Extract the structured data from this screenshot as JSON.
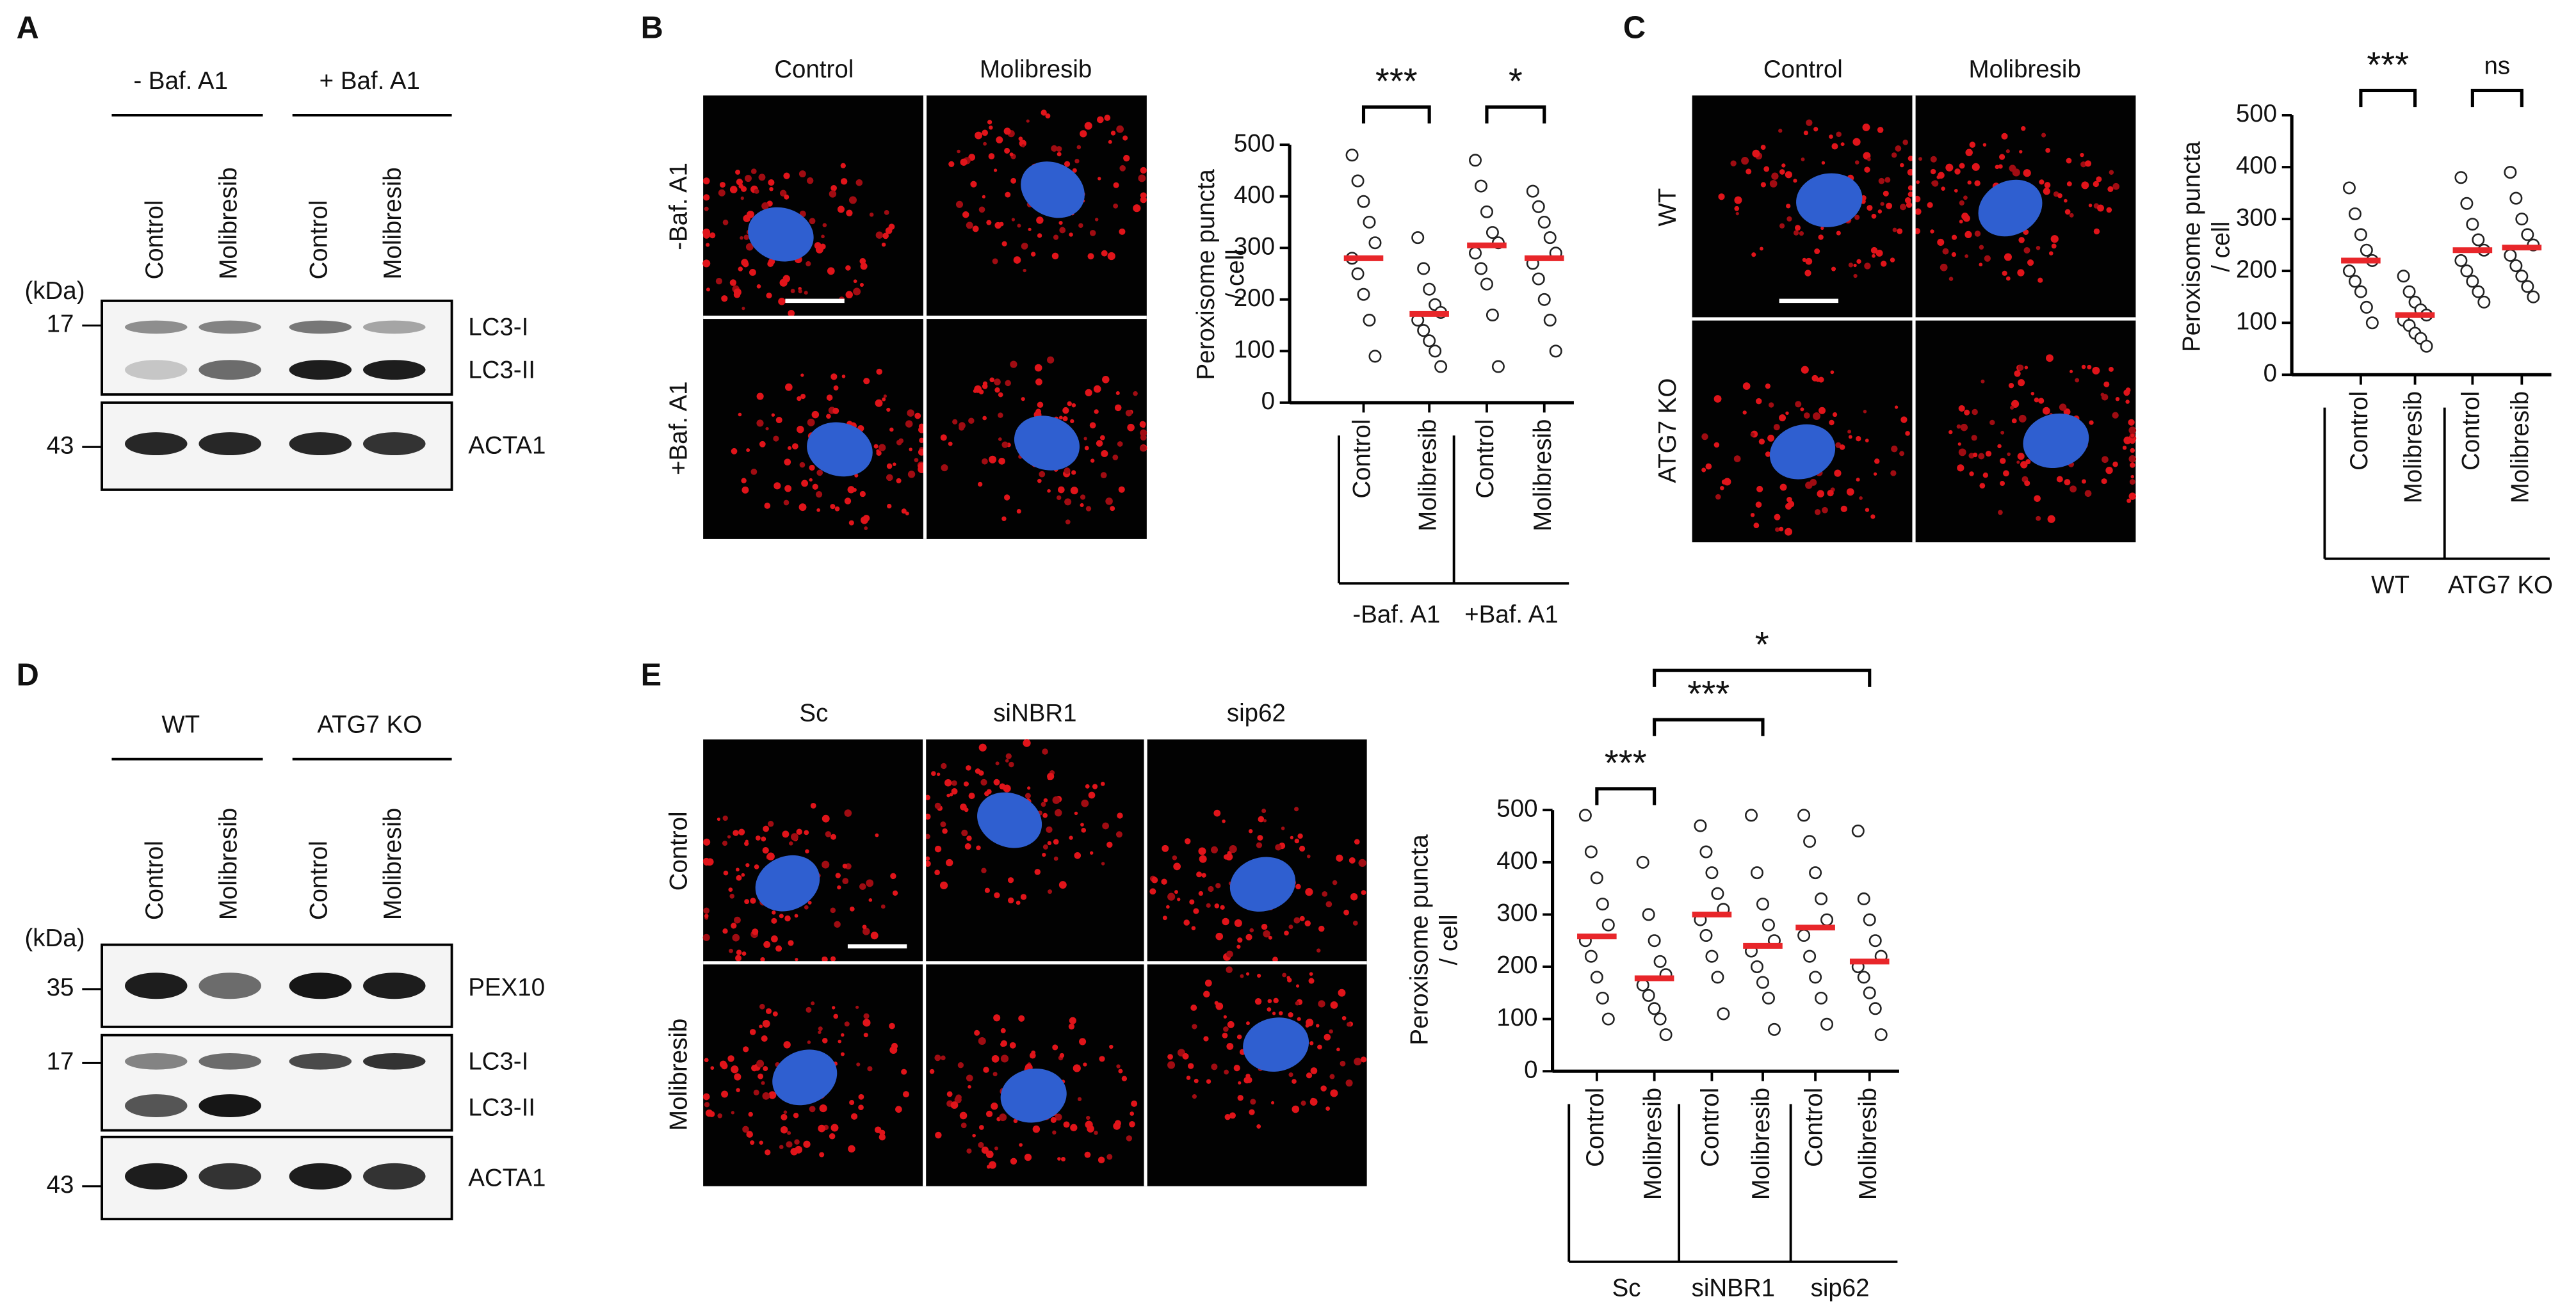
{
  "figure": {
    "A": {
      "label": "A",
      "conditions": [
        "- Baf. A1",
        "+ Baf. A1"
      ],
      "lanes": [
        "Control",
        "Molibresib",
        "Control",
        "Molibresib"
      ],
      "unit": "(kDa)",
      "blots": [
        {
          "markers": [
            17
          ],
          "bands": [
            "LC3-I",
            "LC3-II"
          ]
        },
        {
          "markers": [
            43
          ],
          "bands": [
            "ACTA1"
          ]
        }
      ]
    },
    "B": {
      "label": "B",
      "columns": [
        "Control",
        "Molibresib"
      ],
      "rows": [
        "-Baf. A1",
        "+Baf. A1"
      ]
    },
    "C": {
      "label": "C",
      "columns": [
        "Control",
        "Molibresib"
      ],
      "rows": [
        "WT",
        "ATG7 KO"
      ]
    },
    "D": {
      "label": "D",
      "conditions": [
        "WT",
        "ATG7 KO"
      ],
      "lanes": [
        "Control",
        "Molibresib",
        "Control",
        "Molibresib"
      ],
      "unit": "(kDa)",
      "blots": [
        {
          "markers": [
            35
          ],
          "bands": [
            "PEX10"
          ]
        },
        {
          "markers": [
            17
          ],
          "bands": [
            "LC3-I",
            "LC3-II"
          ]
        },
        {
          "markers": [
            43
          ],
          "bands": [
            "ACTA1"
          ]
        }
      ]
    },
    "E": {
      "label": "E",
      "columns": [
        "Sc",
        "siNBR1",
        "sip62"
      ],
      "rows": [
        "Control",
        "Molibresib"
      ]
    }
  },
  "chart_data": [
    {
      "type": "dot",
      "ylabel": [
        "Peroxisome puncta",
        "/ cell"
      ],
      "ylim": [
        0,
        500
      ],
      "yticks": [
        0,
        100,
        200,
        300,
        400,
        500
      ],
      "point_color": "#ffffff",
      "mean_color": "#e8262a",
      "significance": [
        "***",
        "*"
      ],
      "groups": [
        {
          "label": "-Baf. A1",
          "categories": [
            "Control",
            "Molibresib"
          ],
          "means": [
            280,
            172
          ],
          "points": [
            [
              480,
              430,
              390,
              350,
              310,
              280,
              250,
              210,
              160,
              90
            ],
            [
              320,
              260,
              220,
              190,
              175,
              160,
              140,
              120,
              100,
              70
            ]
          ]
        },
        {
          "label": "+Baf. A1",
          "categories": [
            "Control",
            "Molibresib"
          ],
          "means": [
            305,
            280
          ],
          "points": [
            [
              470,
              420,
              370,
              330,
              310,
              290,
              260,
              230,
              170,
              70
            ],
            [
              410,
              380,
              350,
              320,
              290,
              270,
              240,
              200,
              160,
              100
            ]
          ]
        }
      ]
    },
    {
      "type": "dot",
      "ylabel": [
        "Peroxisome puncta",
        "/ cell"
      ],
      "ylim": [
        0,
        500
      ],
      "yticks": [
        0,
        100,
        200,
        300,
        400,
        500
      ],
      "point_color": "#ffffff",
      "mean_color": "#e8262a",
      "significance": [
        "***",
        "ns"
      ],
      "groups": [
        {
          "label": "WT",
          "categories": [
            "Control",
            "Molibresib"
          ],
          "means": [
            220,
            115
          ],
          "points": [
            [
              360,
              310,
              270,
              240,
              220,
              200,
              180,
              160,
              130,
              100
            ],
            [
              190,
              160,
              140,
              125,
              115,
              105,
              95,
              80,
              70,
              55
            ]
          ]
        },
        {
          "label": "ATG7 KO",
          "categories": [
            "Control",
            "Molibresib"
          ],
          "means": [
            240,
            245
          ],
          "points": [
            [
              380,
              330,
              290,
              260,
              240,
              220,
              200,
              180,
              160,
              140
            ],
            [
              390,
              340,
              300,
              270,
              250,
              230,
              210,
              190,
              170,
              150
            ]
          ]
        }
      ]
    },
    {
      "type": "dot",
      "ylabel": [
        "Peroxisome puncta",
        "/ cell"
      ],
      "ylim": [
        0,
        500
      ],
      "yticks": [
        0,
        100,
        200,
        300,
        400,
        500
      ],
      "point_color": "#ffffff",
      "mean_color": "#e8262a",
      "significance": [
        "***",
        "***",
        "*"
      ],
      "groups": [
        {
          "label": "Sc",
          "categories": [
            "Control",
            "Molibresib"
          ],
          "means": [
            258,
            178
          ],
          "points": [
            [
              490,
              420,
              370,
              320,
              280,
              250,
              220,
              180,
              140,
              100
            ],
            [
              400,
              300,
              250,
              210,
              185,
              165,
              145,
              120,
              100,
              70
            ]
          ]
        },
        {
          "label": "siNBR1",
          "categories": [
            "Control",
            "Molibresib"
          ],
          "means": [
            300,
            240
          ],
          "points": [
            [
              470,
              420,
              380,
              340,
              310,
              290,
              260,
              220,
              180,
              110
            ],
            [
              490,
              380,
              320,
              280,
              250,
              230,
              200,
              170,
              140,
              80
            ]
          ]
        },
        {
          "label": "sip62",
          "categories": [
            "Control",
            "Molibresib"
          ],
          "means": [
            275,
            210
          ],
          "points": [
            [
              490,
              440,
              380,
              330,
              290,
              260,
              220,
              180,
              140,
              90
            ],
            [
              460,
              330,
              290,
              250,
              220,
              200,
              180,
              150,
              120,
              70
            ]
          ]
        }
      ]
    }
  ]
}
